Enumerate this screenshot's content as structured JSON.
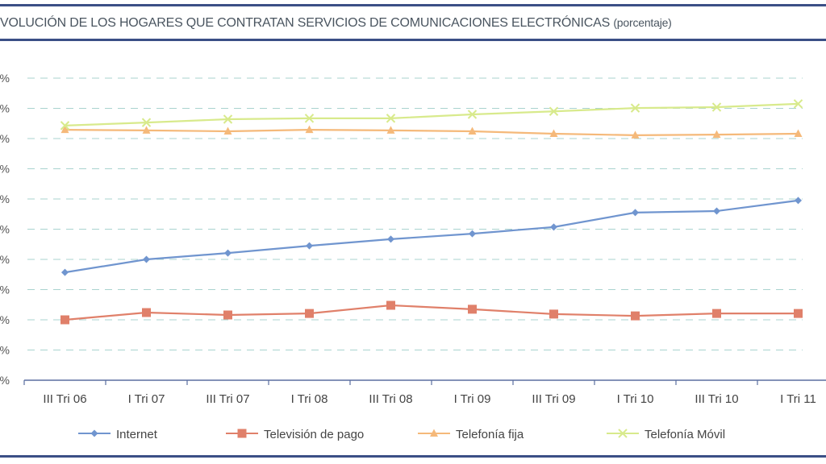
{
  "chart_data": {
    "type": "line",
    "title": "VOLUCIÓN DE LOS HOGARES QUE CONTRATAN SERVICIOS DE COMUNICACIONES ELECTRÓNICAS",
    "subtitle": "(porcentaje)",
    "categories": [
      "III Tri 06",
      "I Tri 07",
      "III Tri  07",
      "I Tri 08",
      "III Tri 08",
      "I Tri 09",
      "III Tri 09",
      "I Tri 10",
      "III Tri 10",
      "I Tri 11"
    ],
    "ylim": [
      0,
      100
    ],
    "yticks": [
      0,
      10,
      20,
      30,
      40,
      50,
      60,
      70,
      80,
      90,
      100
    ],
    "ytick_labels": [
      "%",
      "%",
      "%",
      "%",
      "%",
      "%",
      "%",
      "%",
      "%",
      "%",
      "%"
    ],
    "grid": true,
    "legend": "bottom",
    "series": [
      {
        "name": "Internet",
        "color": "#7095cf",
        "marker": "diamond",
        "values": [
          35.7,
          40.0,
          42.1,
          44.5,
          46.7,
          48.5,
          50.7,
          55.5,
          56.0,
          59.5
        ]
      },
      {
        "name": "Televisión de pago",
        "color": "#e0806a",
        "marker": "square",
        "values": [
          20.0,
          22.4,
          21.6,
          22.1,
          24.8,
          23.5,
          21.9,
          21.3,
          22.1,
          22.1
        ]
      },
      {
        "name": "Telefonía fija",
        "color": "#f5b97a",
        "marker": "triangle",
        "values": [
          82.9,
          82.7,
          82.4,
          82.9,
          82.7,
          82.4,
          81.6,
          81.1,
          81.3,
          81.6
        ]
      },
      {
        "name": "Telefonía Móvil",
        "color": "#d8ea8c",
        "marker": "x",
        "values": [
          84.3,
          85.3,
          86.4,
          86.7,
          86.7,
          88.0,
          89.0,
          90.1,
          90.4,
          91.5
        ]
      }
    ]
  }
}
